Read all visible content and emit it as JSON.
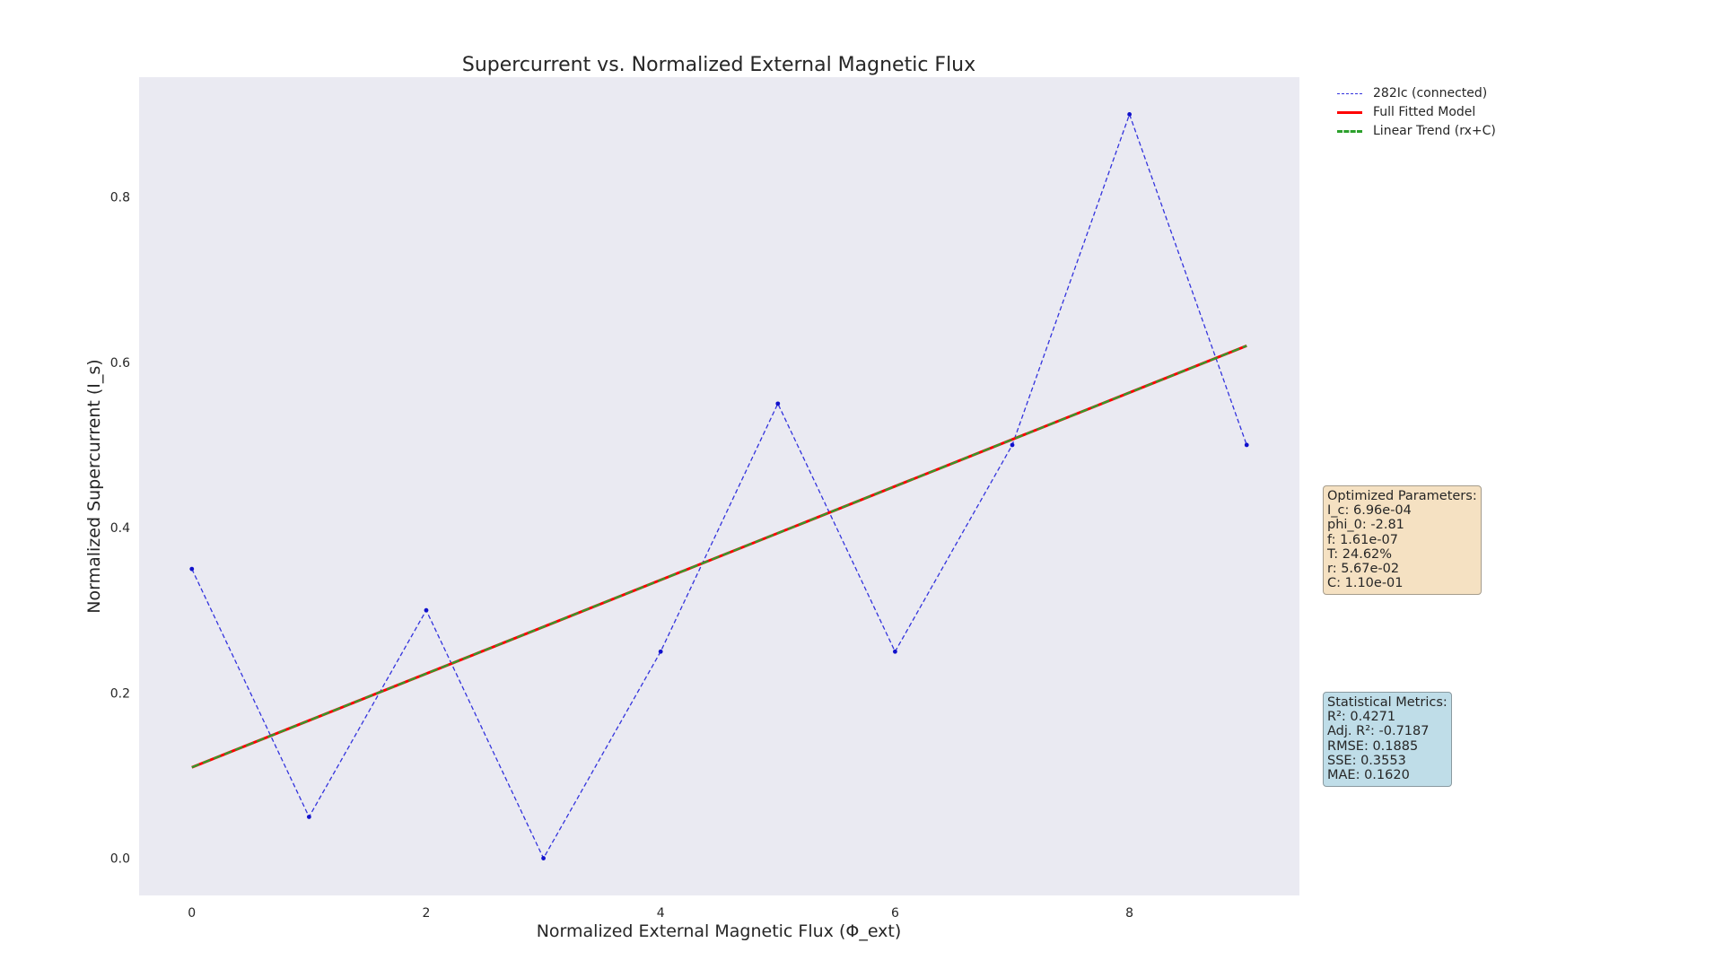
{
  "chart_data": {
    "type": "line",
    "title": "Supercurrent vs. Normalized External Magnetic Flux",
    "xlabel": "Normalized External Magnetic Flux (Φ_ext)",
    "ylabel": "Normalized Supercurrent (I_s)",
    "xlim": [
      -0.45,
      9.45
    ],
    "ylim": [
      -0.045,
      0.945
    ],
    "xticks": [
      0,
      2,
      4,
      6,
      8
    ],
    "xtick_labels": [
      "0",
      "2",
      "4",
      "6",
      "8"
    ],
    "yticks": [
      0.0,
      0.2,
      0.4,
      0.6,
      0.8
    ],
    "ytick_labels": [
      "0.0",
      "0.2",
      "0.4",
      "0.6",
      "0.8"
    ],
    "grid": false,
    "legend_position": "upper-right-outside",
    "series": [
      {
        "name": "282Ic (connected)",
        "style": "dashed-markers",
        "color": "#3333dd",
        "x": [
          0,
          1,
          2,
          3,
          4,
          5,
          6,
          7,
          8,
          9
        ],
        "y": [
          0.35,
          0.05,
          0.3,
          0.0,
          0.25,
          0.55,
          0.25,
          0.5,
          0.9,
          0.5
        ]
      },
      {
        "name": "Full Fitted Model",
        "style": "solid",
        "color": "#ff0000",
        "x": [
          0,
          9
        ],
        "y": [
          0.11,
          0.62
        ]
      },
      {
        "name": "Linear Trend (rx+C)",
        "style": "dashed",
        "color": "#2ca02c",
        "x": [
          0,
          9
        ],
        "y": [
          0.11,
          0.62
        ]
      }
    ],
    "annotations": {
      "params_title": "Optimized Parameters:",
      "params": [
        "I_c: 6.96e-04",
        "phi_0: -2.81",
        "f: 1.61e-07",
        "T: 24.62%",
        "r: 5.67e-02",
        "C: 1.10e-01"
      ],
      "stats_title": "Statistical Metrics:",
      "stats": [
        "R²: 0.4271",
        "Adj. R²: -0.7187",
        "RMSE: 0.1885",
        "SSE: 0.3553",
        "MAE: 0.1620"
      ]
    }
  },
  "colors": {
    "axes_background": "#eaeaf2",
    "params_box": "#f5e1c2",
    "stats_box": "#bfdde8"
  }
}
